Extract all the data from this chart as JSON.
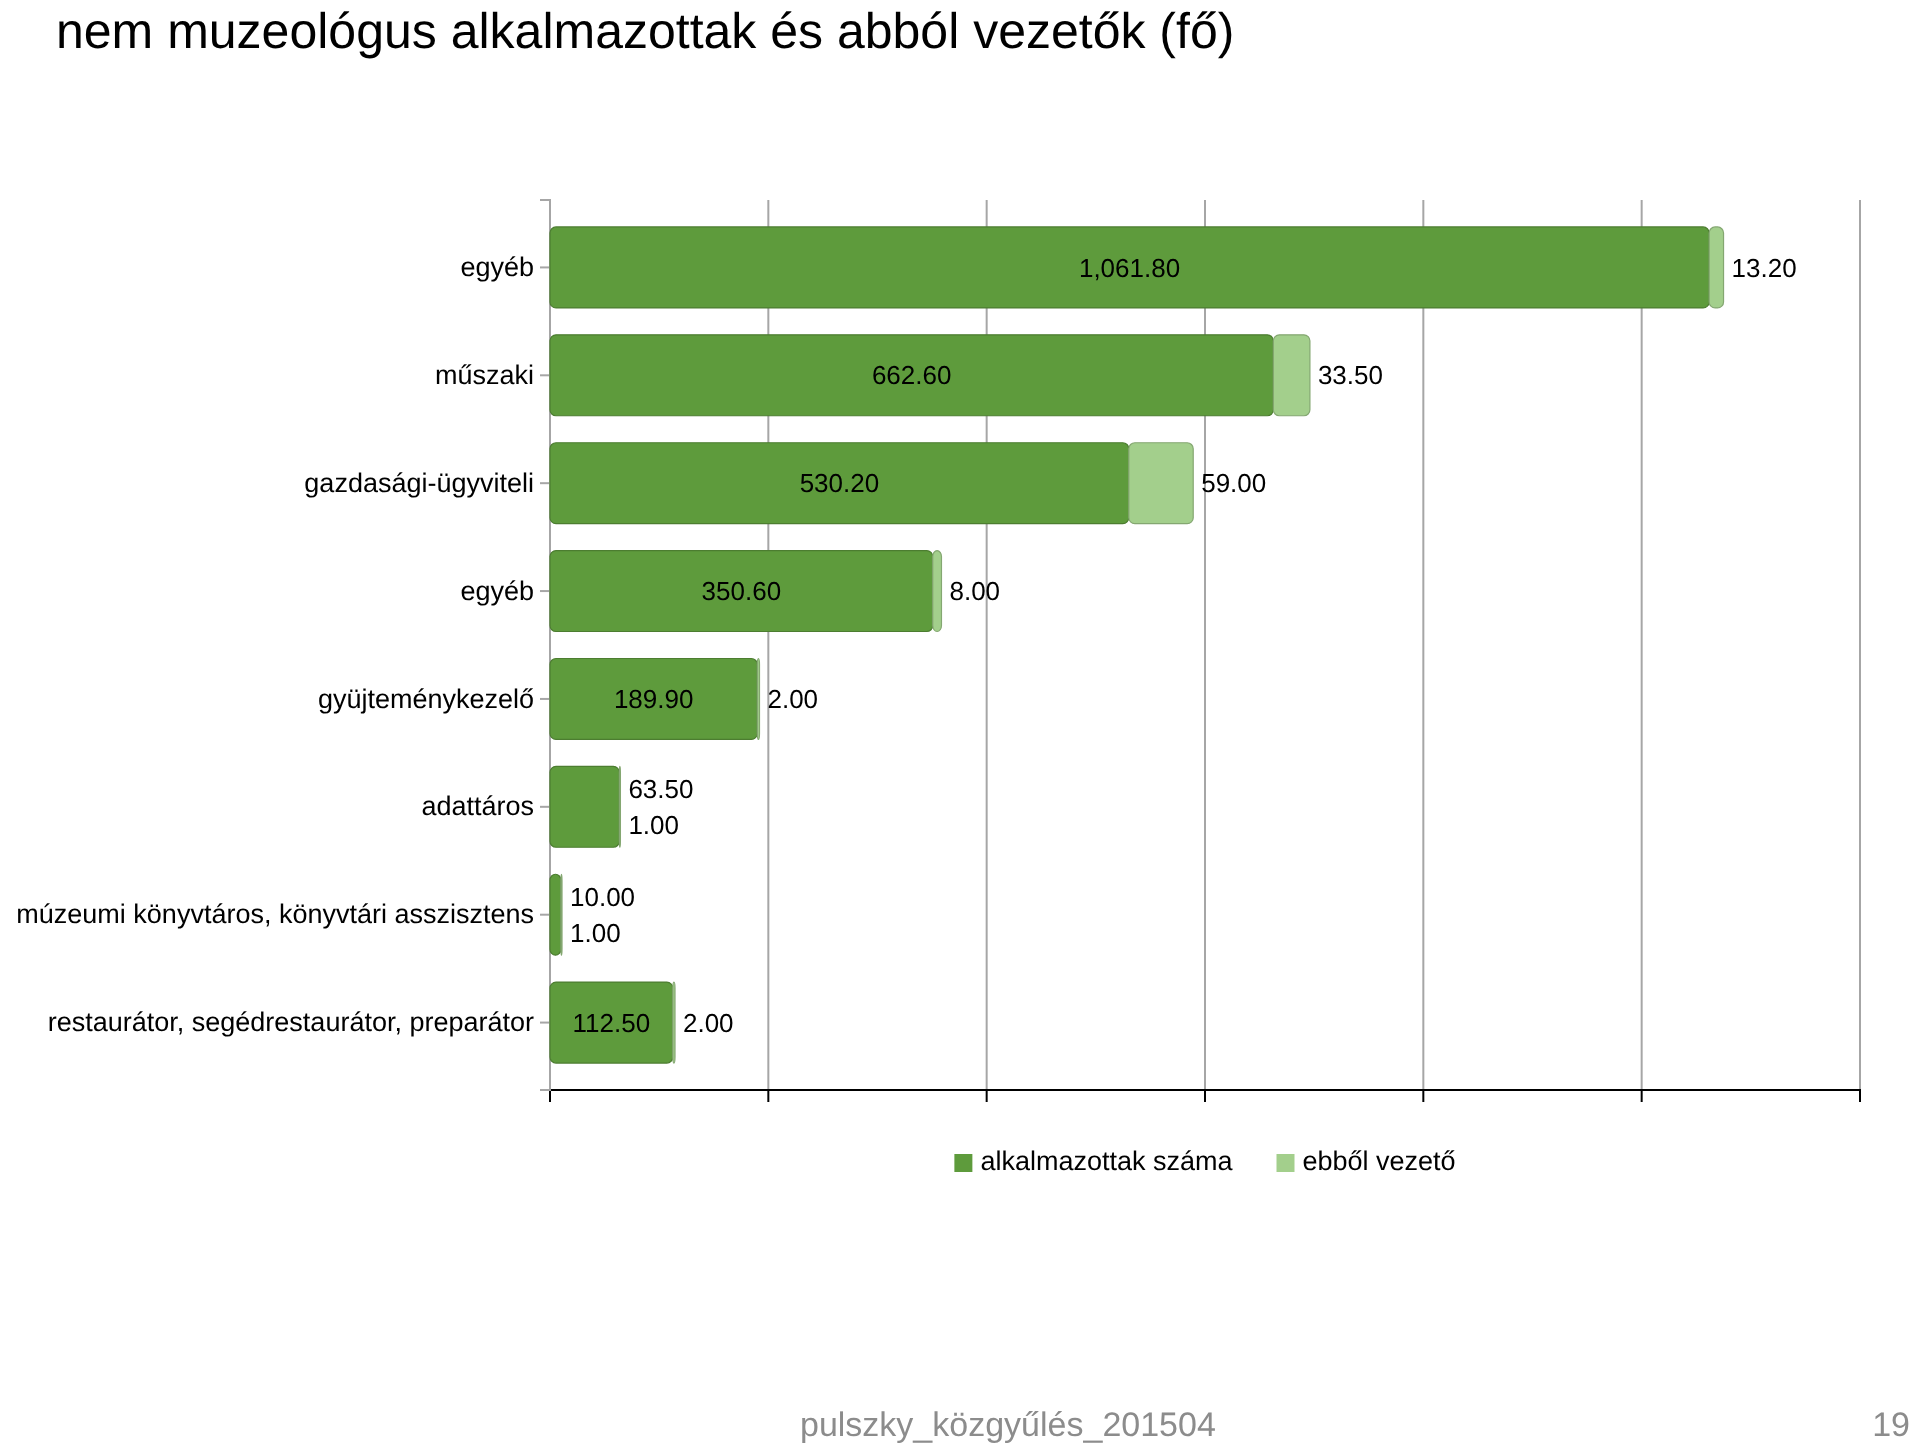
{
  "chart_data": {
    "type": "bar",
    "orientation": "horizontal",
    "stacked": true,
    "title": "nem muzeológus alkalmazottak és abból vezetők (fő)",
    "categories": [
      "egyéb",
      "műszaki",
      "gazdasági-ügyviteli",
      "egyéb",
      "gyüjteménykezelő",
      "adattáros",
      "múzeumi könyvtáros, könyvtári asszisztens",
      "restaurátor, segédrestaurátor, preparátor"
    ],
    "series": [
      {
        "name": "alkalmazottak száma",
        "color": "#5e9b3c",
        "values": [
          1061.8,
          662.6,
          530.2,
          350.6,
          189.9,
          63.5,
          10,
          112.5
        ],
        "value_labels": [
          "1,061.80",
          "662.60",
          "530.20",
          "350.60",
          "189.90",
          "63.50",
          "10.00",
          "112.50"
        ]
      },
      {
        "name": "ebből vezető",
        "color": "#a3cf8c",
        "values": [
          13.2,
          33.5,
          59,
          8,
          2,
          1,
          1,
          2
        ],
        "value_labels": [
          "13.20",
          "33.50",
          "59.00",
          "8.00",
          "2.00",
          "1.00",
          "1.00",
          "2.00"
        ]
      }
    ],
    "xlim": [
      0,
      1200
    ],
    "xticks": [
      {
        "value": 0,
        "label": null
      },
      {
        "value": 200,
        "label": null
      },
      {
        "value": 400,
        "label": null
      },
      {
        "value": 600,
        "label": null
      },
      {
        "value": 800,
        "label": null
      },
      {
        "value": 1000,
        "label": null
      },
      {
        "value": 1200,
        "label": null
      }
    ],
    "tick_labels": "y",
    "grid": "x",
    "legend": "bottom",
    "annotations": [
      "pulszky_közgyűlés_201504",
      "19"
    ]
  }
}
